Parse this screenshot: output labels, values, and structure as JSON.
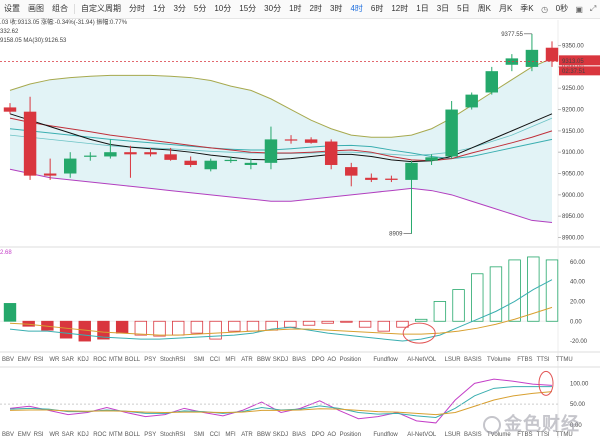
{
  "toolbar": {
    "left_items": [
      "设置",
      "画图",
      "组合"
    ],
    "period_items": [
      "自定义周期",
      "分时",
      "1分",
      "3分",
      "5分",
      "10分",
      "15分",
      "30分",
      "1时",
      "2时",
      "3时",
      "4时",
      "6时",
      "12时",
      "1日",
      "3日",
      "5日",
      "周K",
      "月K",
      "季K"
    ],
    "active_period": "4时",
    "right_icons": [
      "clock-icon",
      "camera-icon",
      "fullscreen-icon"
    ],
    "right_label": "0秒"
  },
  "info_lines": {
    "line1": ".03  收:9313.05  涨幅:-0.34%(-31.94)  振幅:0.77%",
    "line2": "332.62",
    "line3": "9158.05   MA(30):9126.53",
    "sub_label": "2.68"
  },
  "price_labels": {
    "high_marker": "9377.55",
    "low_marker": "8909",
    "current_price": "9313.05",
    "countdown": "02:37:51"
  },
  "colors": {
    "up": "#25a86b",
    "down": "#d9363e",
    "ma_black": "#111111",
    "ma_red": "#c0303a",
    "ma_teal": "#3aaeb0",
    "band_fill": "#e2f3f6",
    "band_mid": "#a7a94e",
    "band_lower": "#b23fbf",
    "band_upper": "#a7a94e"
  },
  "indicator_tabs": [
    "BBV",
    "EMV",
    "RSI",
    "WR",
    "SAR",
    "KDJ",
    "ROC",
    "MTM",
    "BOLL",
    "PSY",
    "StochRSI",
    "SMI",
    "CCI",
    "MFI",
    "ATR",
    "BBW",
    "SKDJ",
    "BIAS",
    "DPO",
    "AO",
    "Position",
    "Fundflow",
    "AI-NetVOL",
    "LSUR",
    "BASIS",
    "TVolume",
    "FTBS",
    "TTSI",
    "TTMU"
  ],
  "bottom_tabs_partial": [
    "BBV",
    "EMV",
    "RSI",
    "WR",
    "SAR",
    "KDJ",
    "ROC",
    "MTM",
    "BOLL",
    "PSY",
    "StochRSI",
    "SMI",
    "CCI",
    "MFI",
    "ATR",
    "BBW",
    "SKDJ",
    "BIAS",
    "DPO",
    "AO",
    "Position",
    "Fundflow",
    "AI-NetVOL",
    "LSUR",
    "BASIS",
    "TVolume",
    "FTBS",
    "TTSI",
    "TTMU"
  ],
  "watermark": "金色财经",
  "chart_data": [
    {
      "type": "candlestick",
      "title": "",
      "ylim": [
        8880,
        9410
      ],
      "yticks": [
        8900,
        8950,
        9000,
        9050,
        9100,
        9150,
        9200,
        9250,
        9300,
        9350
      ],
      "candles": [
        {
          "o": 9205,
          "h": 9215,
          "l": 9190,
          "c": 9195
        },
        {
          "o": 9195,
          "h": 9230,
          "l": 9035,
          "c": 9045
        },
        {
          "o": 9050,
          "h": 9085,
          "l": 9035,
          "c": 9045
        },
        {
          "o": 9050,
          "h": 9100,
          "l": 9040,
          "c": 9085
        },
        {
          "o": 9090,
          "h": 9100,
          "l": 9080,
          "c": 9092
        },
        {
          "o": 9090,
          "h": 9130,
          "l": 9085,
          "c": 9100
        },
        {
          "o": 9100,
          "h": 9115,
          "l": 9040,
          "c": 9095
        },
        {
          "o": 9100,
          "h": 9110,
          "l": 9090,
          "c": 9095
        },
        {
          "o": 9095,
          "h": 9110,
          "l": 9080,
          "c": 9082
        },
        {
          "o": 9080,
          "h": 9090,
          "l": 9065,
          "c": 9070
        },
        {
          "o": 9060,
          "h": 9085,
          "l": 9055,
          "c": 9080
        },
        {
          "o": 9080,
          "h": 9090,
          "l": 9075,
          "c": 9082
        },
        {
          "o": 9070,
          "h": 9085,
          "l": 9060,
          "c": 9075
        },
        {
          "o": 9075,
          "h": 9160,
          "l": 9060,
          "c": 9130
        },
        {
          "o": 9130,
          "h": 9140,
          "l": 9120,
          "c": 9128
        },
        {
          "o": 9130,
          "h": 9135,
          "l": 9120,
          "c": 9122
        },
        {
          "o": 9125,
          "h": 9130,
          "l": 9060,
          "c": 9070
        },
        {
          "o": 9065,
          "h": 9075,
          "l": 9020,
          "c": 9045
        },
        {
          "o": 9040,
          "h": 9050,
          "l": 9030,
          "c": 9035
        },
        {
          "o": 9038,
          "h": 9045,
          "l": 9030,
          "c": 9035
        },
        {
          "o": 9035,
          "h": 9080,
          "l": 8909,
          "c": 9075
        },
        {
          "o": 9080,
          "h": 9095,
          "l": 9070,
          "c": 9088
        },
        {
          "o": 9090,
          "h": 9220,
          "l": 9085,
          "c": 9200
        },
        {
          "o": 9205,
          "h": 9240,
          "l": 9200,
          "c": 9235
        },
        {
          "o": 9240,
          "h": 9300,
          "l": 9235,
          "c": 9290
        },
        {
          "o": 9305,
          "h": 9330,
          "l": 9290,
          "c": 9320
        },
        {
          "o": 9300,
          "h": 9377.55,
          "l": 9290,
          "c": 9340
        },
        {
          "o": 9345,
          "h": 9360,
          "l": 9300,
          "c": 9313.05
        }
      ],
      "bands": {
        "upper": [
          9245,
          9260,
          9270,
          9275,
          9278,
          9280,
          9280,
          9280,
          9278,
          9275,
          9268,
          9255,
          9245,
          9225,
          9200,
          9175,
          9155,
          9140,
          9135,
          9135,
          9140,
          9155,
          9180,
          9210,
          9240,
          9270,
          9300,
          9320
        ],
        "lower": [
          9060,
          9050,
          9040,
          9035,
          9030,
          9025,
          9020,
          9015,
          9010,
          9005,
          9000,
          8995,
          8990,
          8985,
          8985,
          8990,
          8995,
          9000,
          9005,
          9010,
          9015,
          9010,
          9000,
          8985,
          8970,
          8955,
          8940,
          8935
        ],
        "mid": [
          9140,
          9135,
          9130,
          9125,
          9120,
          9115,
          9112,
          9110,
          9108,
          9105,
          9102,
          9100,
          9098,
          9097,
          9097,
          9098,
          9100,
          9100,
          9098,
          9095,
          9092,
          9095,
          9100,
          9110,
          9125,
          9140,
          9160,
          9180
        ]
      },
      "ma_lines": {
        "black": [
          9190,
          9175,
          9160,
          9145,
          9130,
          9118,
          9112,
          9108,
          9105,
          9100,
          9093,
          9088,
          9083,
          9082,
          9085,
          9090,
          9095,
          9095,
          9090,
          9082,
          9078,
          9080,
          9090,
          9110,
          9130,
          9150,
          9170,
          9190
        ],
        "red": [
          9180,
          9170,
          9162,
          9155,
          9148,
          9140,
          9134,
          9128,
          9122,
          9116,
          9110,
          9105,
          9100,
          9098,
          9098,
          9100,
          9103,
          9105,
          9100,
          9090,
          9082,
          9080,
          9085,
          9098,
          9110,
          9122,
          9135,
          9150
        ],
        "teal": [
          9155,
          9150,
          9145,
          9140,
          9135,
          9130,
          9126,
          9122,
          9118,
          9114,
          9110,
          9107,
          9105,
          9105,
          9108,
          9112,
          9115,
          9116,
          9113,
          9105,
          9098,
          9090,
          9085,
          9090,
          9100,
          9110,
          9120,
          9130
        ]
      }
    },
    {
      "type": "bar",
      "title": "",
      "ylim": [
        -25,
        70
      ],
      "yticks": [
        60,
        40,
        20,
        0,
        -20
      ],
      "ytick_labels": [
        "60.00",
        "40.00",
        "20.00",
        "0.00",
        "-20.00"
      ],
      "values": [
        18,
        -5,
        -9,
        -17,
        -20,
        -18,
        -12,
        -14,
        -15,
        -14,
        -12,
        -18,
        -10,
        -10,
        -9,
        -6,
        -4,
        -2,
        -1,
        -6,
        -10,
        -6,
        2,
        20,
        32,
        48,
        55,
        62,
        65,
        62
      ],
      "hollow_from_index": 7,
      "lines": {
        "teal": [
          -8,
          -10,
          -10,
          -12,
          -14,
          -16,
          -17,
          -18,
          -18,
          -17,
          -16,
          -15,
          -14,
          -12,
          -8,
          -6,
          -9,
          -12,
          -14,
          -16,
          -18,
          -20,
          -18,
          -14,
          -6,
          2,
          10,
          20,
          32,
          42
        ],
        "orange": [
          -2,
          -3,
          -5,
          -7,
          -9,
          -11,
          -12,
          -13,
          -14,
          -14,
          -13,
          -12,
          -11,
          -10,
          -9,
          -8,
          -8,
          -9,
          -10,
          -11,
          -12,
          -13,
          -13,
          -12,
          -10,
          -7,
          -3,
          2,
          8,
          14
        ]
      }
    },
    {
      "type": "line",
      "title": "",
      "ylim": [
        0,
        120
      ],
      "yticks": [
        100,
        50,
        0
      ],
      "ytick_labels": [
        "100.00",
        "50.00",
        "0.00"
      ],
      "series": [
        {
          "color": "#c440c8",
          "values": [
            40,
            45,
            35,
            25,
            30,
            42,
            30,
            20,
            25,
            40,
            30,
            22,
            35,
            55,
            30,
            40,
            58,
            35,
            15,
            20,
            30,
            10,
            5,
            60,
            100,
            110,
            105,
            98,
            95
          ]
        },
        {
          "color": "#3aaeb0",
          "values": [
            38,
            40,
            38,
            32,
            32,
            36,
            33,
            28,
            28,
            34,
            32,
            28,
            32,
            42,
            36,
            38,
            46,
            40,
            30,
            26,
            28,
            22,
            18,
            40,
            70,
            88,
            92,
            92,
            92
          ]
        },
        {
          "color": "#d8a030",
          "values": [
            35,
            36,
            36,
            34,
            33,
            34,
            33,
            31,
            30,
            31,
            31,
            30,
            31,
            35,
            35,
            36,
            39,
            38,
            35,
            32,
            31,
            28,
            25,
            30,
            45,
            60,
            70,
            76,
            80
          ]
        }
      ]
    }
  ]
}
